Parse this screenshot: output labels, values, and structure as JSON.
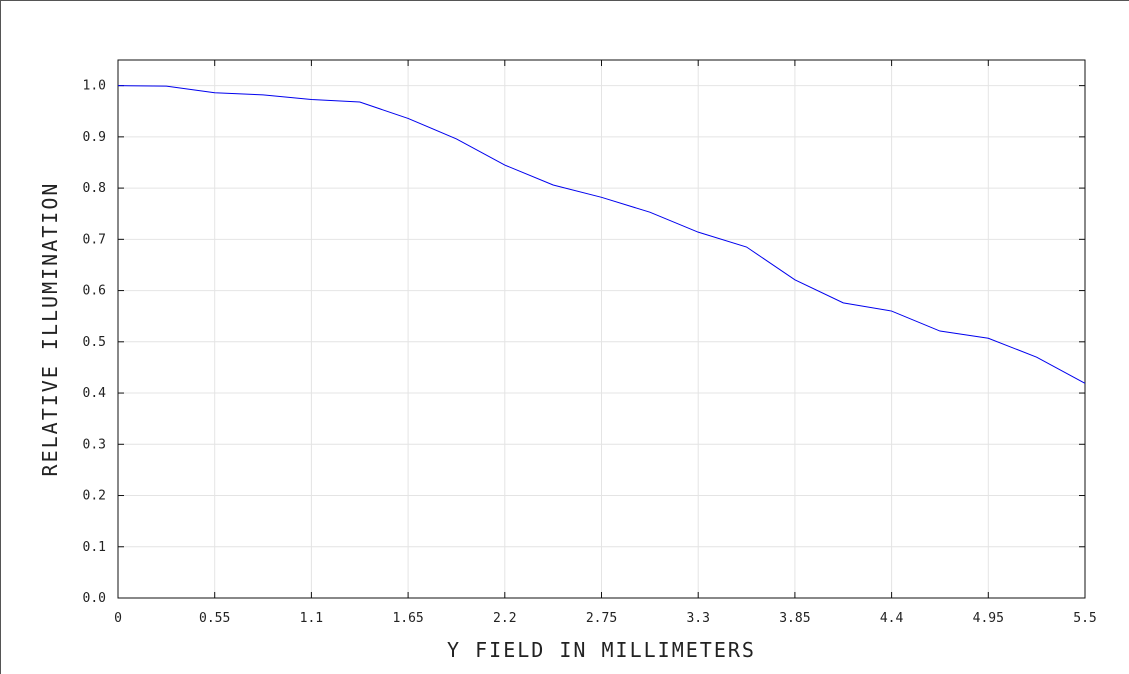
{
  "chart_data": {
    "type": "line",
    "title": "",
    "xlabel": "Y FIELD IN MILLIMETERS",
    "ylabel": "RELATIVE ILLUMINATION",
    "xlim": [
      0,
      5.5
    ],
    "ylim": [
      0.0,
      1.05
    ],
    "grid": true,
    "x_ticks": [
      "0",
      "0.55",
      "1.1",
      "1.65",
      "2.2",
      "2.75",
      "3.3",
      "3.85",
      "4.4",
      "4.95",
      "5.5"
    ],
    "y_ticks": [
      "0.0",
      "0.1",
      "0.2",
      "0.3",
      "0.4",
      "0.5",
      "0.6",
      "0.7",
      "0.8",
      "0.9",
      "1.0"
    ],
    "series": [
      {
        "color": "#0000ee",
        "x": [
          0,
          0.275,
          0.55,
          0.825,
          1.1,
          1.375,
          1.65,
          1.925,
          2.2,
          2.475,
          2.75,
          3.025,
          3.3,
          3.575,
          3.85,
          4.125,
          4.4,
          4.675,
          4.95,
          5.225,
          5.5
        ],
        "y": [
          1.0,
          0.999,
          0.986,
          0.982,
          0.973,
          0.968,
          0.936,
          0.896,
          0.845,
          0.806,
          0.782,
          0.753,
          0.714,
          0.685,
          0.621,
          0.576,
          0.56,
          0.521,
          0.507,
          0.47,
          0.419
        ]
      }
    ]
  }
}
